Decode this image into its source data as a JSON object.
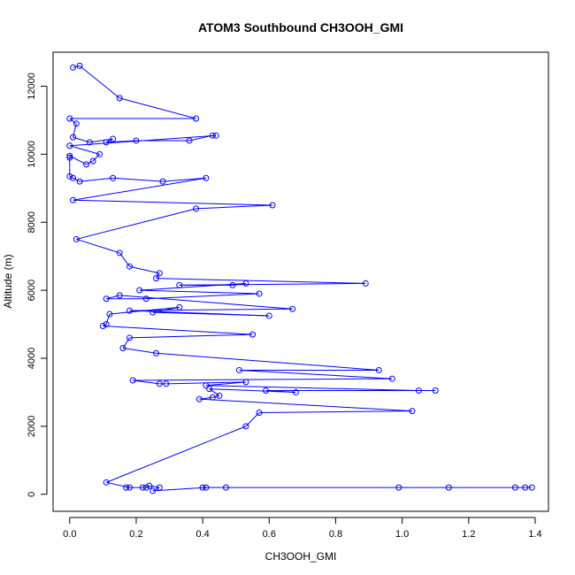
{
  "chart_data": {
    "type": "scatter",
    "title": "ATOM3 Southbound CH3OOH_GMI",
    "xlabel": "CH3OOH_GMI",
    "ylabel": "Altitude (m)",
    "xlim": [
      -0.05,
      1.44
    ],
    "ylim": [
      -500,
      13000
    ],
    "x_ticks": [
      0.0,
      0.2,
      0.4,
      0.6,
      0.8,
      1.0,
      1.2,
      1.4
    ],
    "x_tick_labels": [
      "0.0",
      "0.2",
      "0.4",
      "0.6",
      "0.8",
      "1.0",
      "1.2",
      "1.4"
    ],
    "y_ticks": [
      0,
      2000,
      4000,
      6000,
      8000,
      10000,
      12000
    ],
    "y_tick_labels": [
      "0",
      "2000",
      "4000",
      "6000",
      "8000",
      "10000",
      "12000"
    ],
    "grid": false,
    "legend": "none",
    "series": [
      {
        "marker": "open-circle",
        "connected": true,
        "color": "#0000ff",
        "points": [
          [
            0.01,
            12550
          ],
          [
            0.03,
            12600
          ],
          [
            0.15,
            11650
          ],
          [
            0.38,
            11050
          ],
          [
            0.0,
            11050
          ],
          [
            0.02,
            10900
          ],
          [
            0.01,
            10500
          ],
          [
            0.06,
            10350
          ],
          [
            0.13,
            10450
          ],
          [
            0.11,
            10350
          ],
          [
            0.2,
            10400
          ],
          [
            0.36,
            10400
          ],
          [
            0.43,
            10550
          ],
          [
            0.44,
            10550
          ],
          [
            0.0,
            10250
          ],
          [
            0.09,
            10000
          ],
          [
            0.07,
            9800
          ],
          [
            0.05,
            9700
          ],
          [
            0.0,
            9950
          ],
          [
            0.0,
            9900
          ],
          [
            0.0,
            9350
          ],
          [
            0.01,
            9300
          ],
          [
            0.03,
            9200
          ],
          [
            0.13,
            9300
          ],
          [
            0.28,
            9200
          ],
          [
            0.41,
            9300
          ],
          [
            0.01,
            8650
          ],
          [
            0.61,
            8500
          ],
          [
            0.38,
            8400
          ],
          [
            0.02,
            7500
          ],
          [
            0.15,
            7100
          ],
          [
            0.18,
            6700
          ],
          [
            0.27,
            6500
          ],
          [
            0.26,
            6350
          ],
          [
            0.89,
            6200
          ],
          [
            0.33,
            6150
          ],
          [
            0.49,
            6150
          ],
          [
            0.53,
            6200
          ],
          [
            0.21,
            6000
          ],
          [
            0.57,
            5900
          ],
          [
            0.23,
            5750
          ],
          [
            0.11,
            5750
          ],
          [
            0.15,
            5850
          ],
          [
            0.67,
            5450
          ],
          [
            0.18,
            5400
          ],
          [
            0.6,
            5250
          ],
          [
            0.25,
            5350
          ],
          [
            0.33,
            5500
          ],
          [
            0.12,
            5300
          ],
          [
            0.11,
            5000
          ],
          [
            0.1,
            4950
          ],
          [
            0.55,
            4700
          ],
          [
            0.18,
            4600
          ],
          [
            0.16,
            4300
          ],
          [
            0.26,
            4150
          ],
          [
            0.93,
            3650
          ],
          [
            0.51,
            3650
          ],
          [
            0.97,
            3400
          ],
          [
            0.19,
            3350
          ],
          [
            0.27,
            3250
          ],
          [
            0.29,
            3250
          ],
          [
            0.53,
            3300
          ],
          [
            0.41,
            3200
          ],
          [
            1.05,
            3050
          ],
          [
            1.1,
            3050
          ],
          [
            0.59,
            3050
          ],
          [
            0.68,
            3000
          ],
          [
            0.42,
            3100
          ],
          [
            0.45,
            2900
          ],
          [
            0.43,
            2850
          ],
          [
            0.39,
            2800
          ],
          [
            1.03,
            2450
          ],
          [
            0.57,
            2400
          ],
          [
            0.53,
            2000
          ],
          [
            0.11,
            350
          ],
          [
            0.18,
            200
          ],
          [
            0.17,
            200
          ],
          [
            0.22,
            200
          ],
          [
            0.23,
            200
          ],
          [
            0.24,
            250
          ],
          [
            0.27,
            200
          ],
          [
            0.25,
            100
          ],
          [
            0.41,
            200
          ],
          [
            0.4,
            200
          ],
          [
            0.47,
            200
          ],
          [
            0.99,
            200
          ],
          [
            1.14,
            200
          ],
          [
            1.34,
            200
          ],
          [
            1.37,
            200
          ],
          [
            1.39,
            200
          ]
        ]
      }
    ]
  }
}
